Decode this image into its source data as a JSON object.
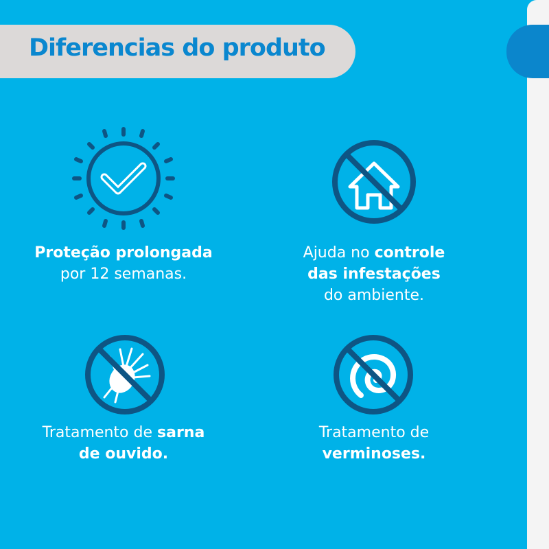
{
  "header": {
    "title": "Diferencias do produto"
  },
  "colors": {
    "background": "#00B2E8",
    "header_bg": "#DCD9D8",
    "title": "#0A87CF",
    "icon_dark": "#0E5584",
    "icon_light": "#FFFFFF"
  },
  "features": [
    {
      "icon": "sun-check-icon",
      "line1_bold": "Proteção prolongada",
      "line2": "por 12 semanas."
    },
    {
      "icon": "no-house-icon",
      "line1_pre": "Ajuda no ",
      "line1_bold": "controle",
      "line2_bold": "das infestações",
      "line3": "do ambiente."
    },
    {
      "icon": "no-mite-icon",
      "line1_pre": "Tratamento de ",
      "line1_bold": "sarna",
      "line2_bold": "de ouvido."
    },
    {
      "icon": "no-worm-icon",
      "line1": "Tratamento de",
      "line2_bold": "verminoses."
    }
  ]
}
